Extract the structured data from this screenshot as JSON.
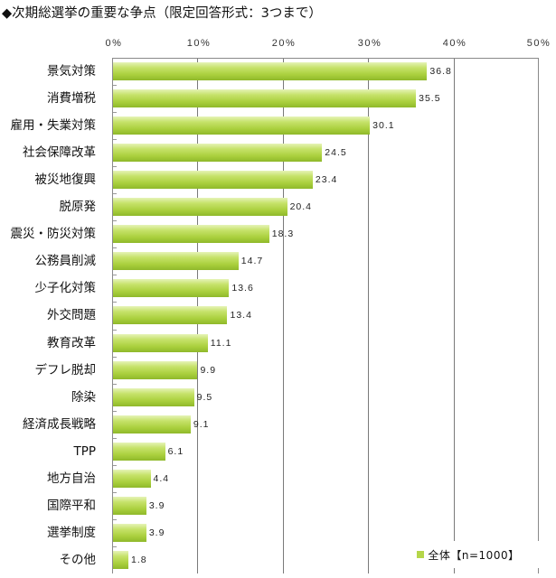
{
  "title": "◆次期総選挙の重要な争点（限定回答形式：3つまで）",
  "legend": {
    "label": "全体【n=1000】",
    "color": "#b5d64a"
  },
  "x_ticks": [
    "0%",
    "10%",
    "20%",
    "30%",
    "40%",
    "50%"
  ],
  "chart_data": {
    "type": "bar",
    "orientation": "horizontal",
    "title": "◆次期総選挙の重要な争点（限定回答形式：3つまで）",
    "xlabel": "",
    "ylabel": "",
    "xlim": [
      0,
      50
    ],
    "x_ticks": [
      "0%",
      "10%",
      "20%",
      "30%",
      "40%",
      "50%"
    ],
    "grid": true,
    "legend_position": "bottom-right",
    "categories": [
      "景気対策",
      "消費増税",
      "雇用・失業対策",
      "社会保障改革",
      "被災地復興",
      "脱原発",
      "震災・防災対策",
      "公務員削減",
      "少子化対策",
      "外交問題",
      "教育改革",
      "デフレ脱却",
      "除染",
      "経済成長戦略",
      "TPP",
      "地方自治",
      "国際平和",
      "選挙制度",
      "その他"
    ],
    "series": [
      {
        "name": "全体【n=1000】",
        "color": "#b5d64a",
        "values": [
          36.8,
          35.5,
          30.1,
          24.5,
          23.4,
          20.4,
          18.3,
          14.7,
          13.6,
          13.4,
          11.1,
          9.9,
          9.5,
          9.1,
          6.1,
          4.4,
          3.9,
          3.9,
          1.8
        ]
      }
    ],
    "labels": [
      "36.8",
      "35.5",
      "30.1",
      "24.5",
      "23.4",
      "20.4",
      "18.3",
      "14.7",
      "13.6",
      "13.4",
      "11.1",
      "9.9",
      "9.5",
      "9.1",
      "6.1",
      "4.4",
      "3.9",
      "3.9",
      "1.8"
    ]
  }
}
